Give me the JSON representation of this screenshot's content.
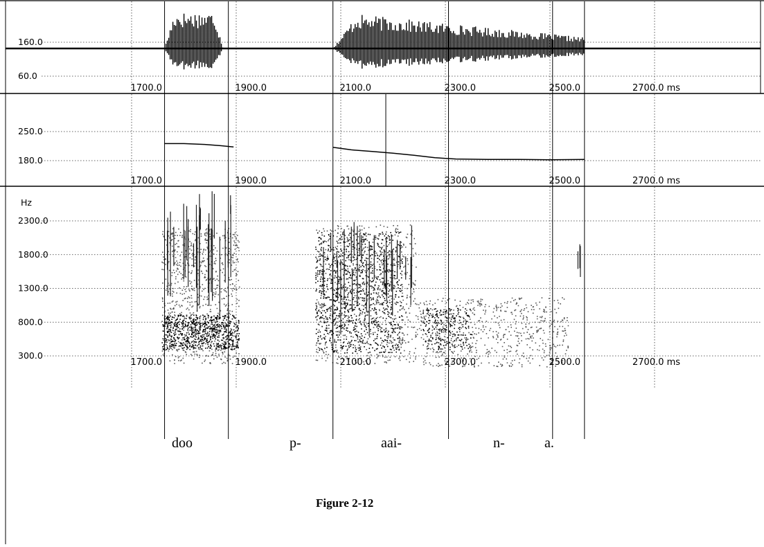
{
  "figure": {
    "caption": "Figure 2-12",
    "x_unit": "ms",
    "x_ticks": [
      1700,
      1900,
      2100,
      2300,
      2500,
      2700
    ],
    "x_tick_labels": [
      "1700.0",
      "1900.0",
      "2100.0",
      "2300.0",
      "2500.0",
      "2700.0 ms"
    ],
    "boundaries_ms": [
      1763,
      1885,
      2085,
      2306,
      2505,
      2566
    ],
    "syllables": [
      "doo",
      "p-",
      "aai-",
      "n-",
      "a."
    ]
  },
  "chart_data": [
    {
      "type": "line",
      "panel": "waveform",
      "ytick_labels": [
        "160.0",
        "60.0"
      ],
      "ylim": [
        60,
        160
      ],
      "segments": [
        {
          "x_start": 1763,
          "x_end": 1875,
          "peak_amplitude": 1.0
        },
        {
          "x_start": 2085,
          "x_end": 2566,
          "peak_amplitude": 0.95
        }
      ]
    },
    {
      "type": "line",
      "panel": "pitch",
      "ytick_labels": [
        "250.0",
        "180.0"
      ],
      "ylim": [
        180,
        250
      ],
      "series": [
        {
          "x": [
            1763,
            1800,
            1840,
            1870,
            1895
          ],
          "y": [
            221,
            221,
            219,
            216,
            213
          ]
        },
        {
          "x": [
            2085,
            2120,
            2160,
            2200,
            2240,
            2280,
            2320,
            2380,
            2440,
            2500,
            2566
          ],
          "y": [
            212,
            206,
            202,
            198,
            193,
            187,
            184,
            183,
            183,
            182,
            183
          ]
        }
      ]
    },
    {
      "type": "heatmap",
      "panel": "spectrogram",
      "ylabel": "Hz",
      "ytick_labels": [
        "2300.0",
        "1800.0",
        "1300.0",
        "800.0",
        "300.0"
      ],
      "ylim": [
        300,
        2300
      ]
    }
  ]
}
